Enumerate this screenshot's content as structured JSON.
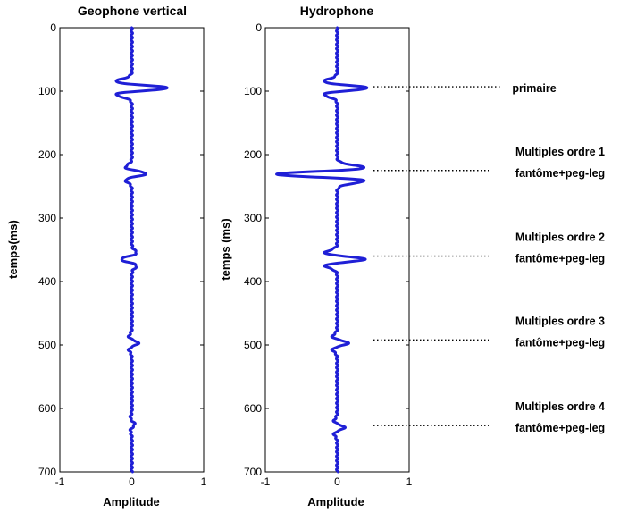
{
  "chart_data": [
    {
      "type": "line",
      "title": "Geophone vertical",
      "xlabel": "Amplitude",
      "ylabel": "temps(ms)",
      "xlim": [
        -1,
        1
      ],
      "ylim": [
        0,
        700
      ],
      "y_reversed": true,
      "xticks": [
        "-1",
        "0",
        "1"
      ],
      "yticks": [
        "0",
        "100",
        "200",
        "300",
        "400",
        "500",
        "600",
        "700"
      ],
      "grid": false,
      "series": [
        {
          "color": "#1f1fd6",
          "wavelets": [
            {
              "t": 95,
              "amp": 0.5
            },
            {
              "t": 230,
              "amp": 0.2
            },
            {
              "t": 365,
              "amp": -0.15
            },
            {
              "t": 497,
              "amp": 0.09
            },
            {
              "t": 625,
              "amp": 0.04
            }
          ]
        }
      ]
    },
    {
      "type": "line",
      "title": "Hydrophone",
      "xlabel": "Amplitude",
      "ylabel": "temps (ms)",
      "xlim": [
        -1,
        1
      ],
      "ylim": [
        0,
        700
      ],
      "y_reversed": true,
      "xticks": [
        "-1",
        "0",
        "1"
      ],
      "yticks": [
        "0",
        "100",
        "200",
        "300",
        "400",
        "500",
        "600",
        "700"
      ],
      "grid": false,
      "series": [
        {
          "color": "#1f1fd6",
          "wavelets": [
            {
              "t": 95,
              "amp": 0.42
            },
            {
              "t": 231,
              "amp": -0.85
            },
            {
              "t": 365,
              "amp": 0.38
            },
            {
              "t": 497,
              "amp": 0.15
            },
            {
              "t": 630,
              "amp": 0.1
            }
          ]
        }
      ],
      "annotations": [
        {
          "t": 93,
          "lines": [
            "primaire"
          ]
        },
        {
          "t": 225,
          "lines": [
            "Multiples ordre 1",
            "fantôme+peg-leg"
          ]
        },
        {
          "t": 360,
          "lines": [
            "Multiples ordre 2",
            "fantôme+peg-leg"
          ]
        },
        {
          "t": 492,
          "lines": [
            "Multiples ordre 3",
            "fantôme+peg-leg"
          ]
        },
        {
          "t": 627,
          "lines": [
            "Multiples ordre 4",
            "fantôme+peg-leg"
          ]
        }
      ]
    }
  ]
}
